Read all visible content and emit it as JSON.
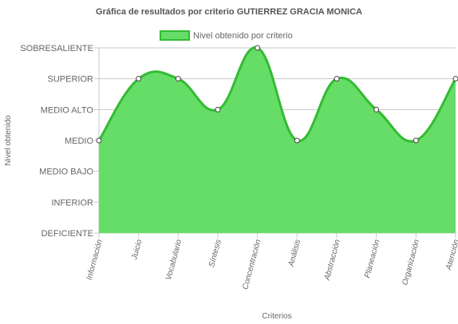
{
  "chart_data": {
    "type": "area",
    "title": "Gráfica de resultados por criterio GUTIERREZ GRACIA MONICA",
    "xlabel": "Criterios",
    "ylabel": "Nivel obtenido",
    "y_levels": [
      "DEFICIENTE",
      "INFERIOR",
      "MEDIO BAJO",
      "MEDIO",
      "MEDIO ALTO",
      "SUPERIOR",
      "SOBRESALIENTE"
    ],
    "ylim": [
      0,
      6
    ],
    "categories": [
      "Información",
      "Juicio",
      "Vocabulario",
      "Síntesis",
      "Concentración",
      "Análisis",
      "Abstracción",
      "Planeación",
      "Organización",
      "Atención"
    ],
    "series": [
      {
        "name": "Nivel obtenido por criterio",
        "values": [
          3,
          5,
          5,
          4,
          6,
          3,
          5,
          4,
          3,
          5
        ]
      }
    ],
    "legend_position": "top",
    "grid": true,
    "colors": {
      "fill": "#66dd66",
      "stroke": "#33bb33",
      "point_fill": "#ffffff",
      "point_stroke": "#444444"
    }
  }
}
